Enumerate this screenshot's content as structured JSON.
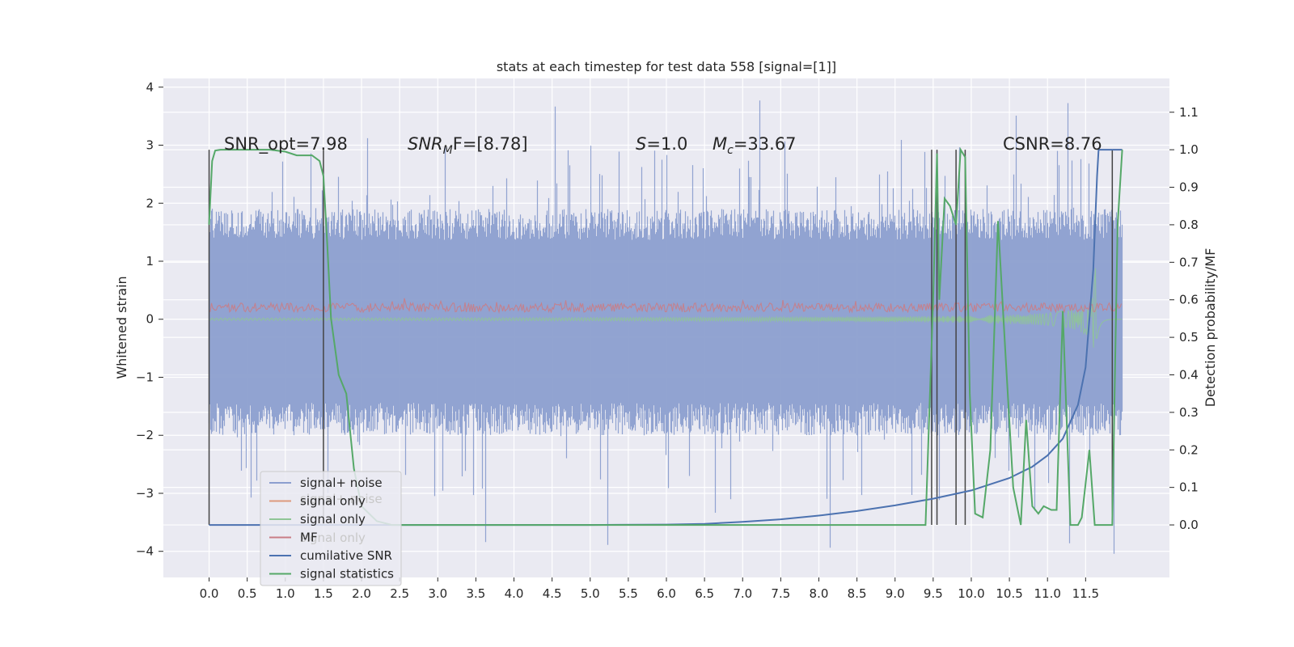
{
  "chart_data": {
    "type": "line",
    "title": "stats at each timestep for test data 558 [signal=[1]]",
    "ylabel": "Whitened strain",
    "y2label": "Detection probability/MF",
    "xlim": [
      -0.6,
      12.6
    ],
    "ylim": [
      -4.45,
      4.15
    ],
    "y2lim": [
      -0.14,
      1.19
    ],
    "xticks": [
      0.0,
      0.5,
      1.0,
      1.5,
      2.0,
      2.5,
      3.0,
      3.5,
      4.0,
      4.5,
      5.0,
      5.5,
      6.0,
      6.5,
      7.0,
      7.5,
      8.0,
      8.5,
      9.0,
      9.5,
      10.0,
      10.5,
      11.0,
      11.5
    ],
    "xtick_labels": [
      "0.0",
      "0.5",
      "1.0",
      "1.5",
      "2.0",
      "2.5",
      "3.0",
      "3.5",
      "4.0",
      "4.5",
      "5.0",
      "5.5",
      "6.0",
      "6.5",
      "7.0",
      "7.5",
      "8.0",
      "8.5",
      "9.0",
      "9.5",
      "10.0",
      "10.5",
      "11.0",
      "11.5"
    ],
    "yticks": [
      4,
      3,
      2,
      1,
      0,
      -1,
      -2,
      -3,
      -4
    ],
    "ytick_labels": [
      "4",
      "3",
      "2",
      "1",
      "0",
      "−1",
      "−2",
      "−3",
      "−4"
    ],
    "y2ticks": [
      1.1,
      1.0,
      0.9,
      0.8,
      0.7,
      0.6,
      0.5,
      0.4,
      0.3,
      0.2,
      0.1,
      0.0
    ],
    "y2tick_labels": [
      "1.1",
      "1.0",
      "0.9",
      "0.8",
      "0.7",
      "0.6",
      "0.5",
      "0.4",
      "0.3",
      "0.2",
      "0.1",
      "0.0"
    ],
    "grid": true,
    "legend_position": "lower-left",
    "legend": [
      {
        "label": "signal+ noise",
        "color": "#8c9fcf"
      },
      {
        "label": "signal only",
        "color": "#dd9a7c"
      },
      {
        "label": "signal only",
        "color": "#8fc596"
      },
      {
        "label": "MF",
        "color": "#c97d86"
      },
      {
        "label": "cumilative SNR",
        "color": "#4c72b0"
      },
      {
        "label": "signal statistics",
        "color": "#55a868"
      }
    ],
    "ghost_legend": [
      {
        "label": "signal+ noise"
      },
      {
        "label": "signal only"
      }
    ],
    "annotations": [
      {
        "text": "SNR_opt=7.98",
        "x": 0.2,
        "y": 3.0
      },
      {
        "text": "SNR_MF=[8.78]",
        "x": 2.6,
        "y": 3.0
      },
      {
        "text": "S=1.0",
        "x": 5.55,
        "y": 3.0
      },
      {
        "text": "M_c=33.67",
        "x": 6.55,
        "y": 3.0
      },
      {
        "text": "CSNR=8.76",
        "x": 10.4,
        "y": 3.0
      }
    ],
    "annotation_texts": {
      "snr_opt": "SNR_opt=7.98",
      "snr_mf_main": "SNR",
      "snr_mf_sub": "M",
      "snr_mf_rest": "F=[8.78]",
      "s_var": "S",
      "s_rest": "=1.0",
      "mc_var": "M",
      "mc_sub": "c",
      "mc_rest": "=33.67",
      "csnr": "CSNR=8.76"
    },
    "series": [
      {
        "name": "signal+ noise",
        "axis": "left",
        "color": "#8c9fcf",
        "x_range": [
          0.0,
          11.98
        ],
        "envelope": {
          "typical_max": 1.9,
          "typical_min": -2.0,
          "extreme_max": 3.8,
          "extreme_min": -4.1
        }
      },
      {
        "name": "signal only",
        "axis": "left",
        "color": "#8fc596",
        "x_range": [
          0.0,
          11.98
        ],
        "note_values": {
          "chirp_peak_x": 11.65,
          "chirp_peak_amplitude": 0.9
        }
      },
      {
        "name": "MF",
        "axis": "left",
        "color": "#c97d86",
        "x_range": [
          0.0,
          11.98
        ],
        "level_band": [
          0.0,
          0.35
        ]
      },
      {
        "name": "cumilative SNR",
        "axis": "right",
        "color": "#4c72b0",
        "x": [
          0.0,
          5.0,
          6.0,
          6.5,
          7.0,
          7.5,
          8.0,
          8.5,
          9.0,
          9.5,
          10.0,
          10.5,
          10.8,
          11.0,
          11.2,
          11.4,
          11.5,
          11.6,
          11.65,
          11.67,
          11.98
        ],
        "y": [
          0.0,
          0.0,
          0.001,
          0.003,
          0.008,
          0.015,
          0.025,
          0.037,
          0.052,
          0.07,
          0.092,
          0.125,
          0.155,
          0.185,
          0.23,
          0.32,
          0.42,
          0.68,
          0.93,
          1.0,
          1.0
        ]
      },
      {
        "name": "signal statistics",
        "axis": "right",
        "color": "#55a868",
        "x": [
          0.0,
          0.04,
          0.08,
          0.15,
          0.3,
          0.5,
          0.8,
          1.0,
          1.15,
          1.25,
          1.35,
          1.45,
          1.5,
          1.55,
          1.6,
          1.7,
          1.8,
          1.9,
          2.0,
          2.2,
          2.4,
          2.6,
          2.8,
          3.0,
          5.0,
          8.0,
          9.0,
          9.4,
          9.5,
          9.55,
          9.58,
          9.65,
          9.72,
          9.8,
          9.86,
          9.92,
          9.98,
          10.05,
          10.15,
          10.25,
          10.35,
          10.45,
          10.55,
          10.65,
          10.72,
          10.8,
          10.88,
          10.95,
          11.05,
          11.12,
          11.2,
          11.3,
          11.4,
          11.45,
          11.55,
          11.62,
          11.7,
          11.78,
          11.85,
          11.92,
          11.98
        ],
        "y": [
          0.8,
          0.97,
          0.998,
          1.0,
          1.0,
          1.0,
          1.0,
          0.995,
          0.985,
          0.985,
          0.985,
          0.97,
          0.93,
          0.75,
          0.55,
          0.4,
          0.35,
          0.15,
          0.05,
          0.01,
          0.0,
          0.0,
          0.0,
          0.0,
          0.0,
          0.0,
          0.0,
          0.0,
          0.6,
          0.99,
          0.6,
          0.87,
          0.85,
          0.8,
          1.0,
          0.98,
          0.35,
          0.03,
          0.02,
          0.2,
          0.81,
          0.45,
          0.1,
          0.0,
          0.28,
          0.05,
          0.03,
          0.05,
          0.04,
          0.04,
          0.57,
          0.0,
          0.0,
          0.02,
          0.2,
          0.0,
          0.0,
          0.0,
          0.0,
          0.8,
          1.0
        ]
      }
    ],
    "vertical_lines": {
      "color": "#444444",
      "axis": "right",
      "y_range": [
        0.0,
        1.0
      ],
      "x": [
        0.0,
        1.5,
        9.48,
        9.55,
        9.8,
        9.92,
        11.85
      ]
    }
  }
}
